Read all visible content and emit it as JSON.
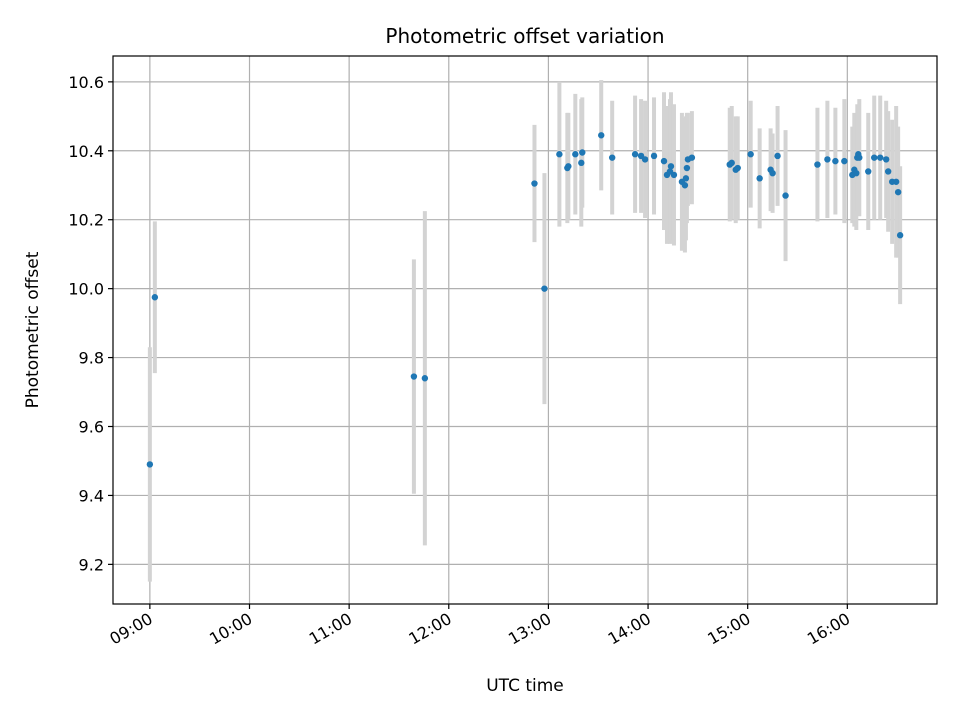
{
  "chart_data": {
    "type": "scatter",
    "title": "Photometric offset variation",
    "xlabel": "UTC time",
    "ylabel": "Photometric offset",
    "x_unit": "hours UTC",
    "xlim": [
      8.63,
      16.9
    ],
    "ylim": [
      9.085,
      10.675
    ],
    "x_ticks": [
      9,
      10,
      11,
      12,
      13,
      14,
      15,
      16
    ],
    "x_tick_labels": [
      "09:00",
      "10:00",
      "11:00",
      "12:00",
      "13:00",
      "14:00",
      "15:00",
      "16:00"
    ],
    "y_ticks": [
      9.2,
      9.4,
      9.6,
      9.8,
      10.0,
      10.2,
      10.4,
      10.6
    ],
    "y_tick_labels": [
      "9.2",
      "9.4",
      "9.6",
      "9.8",
      "10.0",
      "10.2",
      "10.4",
      "10.6"
    ],
    "grid": true,
    "point_color": "#1f77b4",
    "errorbar_color": "#d3d3d3",
    "series": [
      {
        "x": [
          9.0,
          9.05,
          11.65,
          11.76,
          12.86,
          12.96,
          13.11,
          13.19,
          13.2,
          13.27,
          13.33,
          13.34,
          13.53,
          13.64,
          13.87,
          13.93,
          13.97,
          14.06,
          14.16,
          14.19,
          14.22,
          14.23,
          14.26,
          14.34,
          14.37,
          14.38,
          14.39,
          14.4,
          14.44,
          14.82,
          14.84,
          14.88,
          14.9,
          15.03,
          15.12,
          15.23,
          15.25,
          15.3,
          15.38,
          15.7,
          15.8,
          15.88,
          15.97,
          16.05,
          16.07,
          16.09,
          16.1,
          16.11,
          16.12,
          16.21,
          16.27,
          16.33,
          16.39,
          16.41,
          16.45,
          16.49,
          16.51,
          16.53
        ],
        "y": [
          9.49,
          9.975,
          9.745,
          9.74,
          10.305,
          10.0,
          10.39,
          10.35,
          10.355,
          10.39,
          10.365,
          10.395,
          10.445,
          10.38,
          10.39,
          10.385,
          10.375,
          10.385,
          10.37,
          10.33,
          10.34,
          10.355,
          10.33,
          10.31,
          10.3,
          10.32,
          10.35,
          10.375,
          10.38,
          10.36,
          10.365,
          10.345,
          10.35,
          10.39,
          10.32,
          10.345,
          10.335,
          10.385,
          10.27,
          10.36,
          10.375,
          10.37,
          10.37,
          10.33,
          10.345,
          10.335,
          10.38,
          10.39,
          10.38,
          10.34,
          10.38,
          10.38,
          10.375,
          10.34,
          10.31,
          10.31,
          10.28,
          10.155
        ],
        "yerr": [
          0.34,
          0.22,
          0.34,
          0.485,
          0.17,
          0.335,
          0.21,
          0.16,
          0.155,
          0.175,
          0.185,
          0.16,
          0.16,
          0.165,
          0.17,
          0.165,
          0.17,
          0.17,
          0.2,
          0.2,
          0.21,
          0.215,
          0.205,
          0.2,
          0.195,
          0.18,
          0.16,
          0.135,
          0.135,
          0.165,
          0.165,
          0.155,
          0.15,
          0.155,
          0.145,
          0.12,
          0.115,
          0.145,
          0.19,
          0.165,
          0.17,
          0.155,
          0.18,
          0.14,
          0.165,
          0.165,
          0.155,
          0.14,
          0.17,
          0.17,
          0.18,
          0.18,
          0.17,
          0.175,
          0.18,
          0.22,
          0.19,
          0.2
        ]
      }
    ]
  }
}
